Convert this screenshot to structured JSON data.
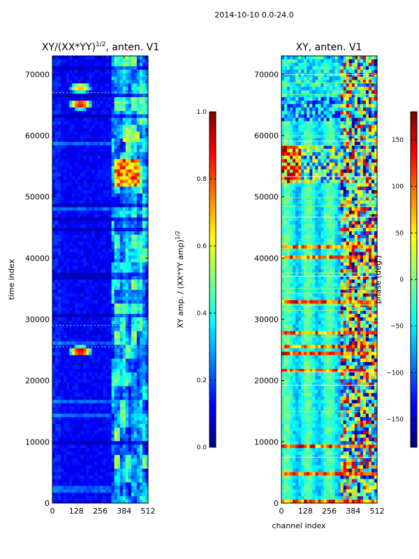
{
  "figure_title": "2014-10-10 0.0-24.0",
  "colors": {
    "jet": [
      "#00007f",
      "#0000ff",
      "#007fff",
      "#00ffff",
      "#7fff7f",
      "#ffff00",
      "#ff7f00",
      "#ff0000",
      "#7f0000"
    ]
  },
  "chart_data": [
    {
      "type": "heatmap",
      "title_base": "XY/(XX*YY)",
      "title_exp": "1/2",
      "title_tail": ", anten. V1",
      "xlabel": "",
      "ylabel": "time index",
      "xlim": [
        0,
        512
      ],
      "ylim": [
        0,
        73000
      ],
      "xticks": [
        0,
        128,
        256,
        384,
        512
      ],
      "yticks": [
        0,
        10000,
        20000,
        30000,
        40000,
        50000,
        60000,
        70000
      ],
      "colorbar": {
        "label_base": "XY amp. / (XX*YY amp)",
        "label_exp": "1/2",
        "range": [
          0.0,
          1.0
        ],
        "ticks": [
          "0.0",
          "0.2",
          "0.4",
          "0.6",
          "0.8",
          "1.0"
        ],
        "tick_values": [
          0.0,
          0.2,
          0.4,
          0.6,
          0.8,
          1.0
        ]
      },
      "features": [
        {
          "channel": 150,
          "time": 24500,
          "value": 0.95
        },
        {
          "channel": 150,
          "time": 64800,
          "value": 0.9
        },
        {
          "channel": 150,
          "time": 67500,
          "value": 0.7
        },
        {
          "channel": 400,
          "time": 53500,
          "value": 0.85
        }
      ]
    },
    {
      "type": "heatmap",
      "title": "XY, anten. V1",
      "xlabel": "channel index",
      "ylabel": "",
      "xlim": [
        0,
        512
      ],
      "ylim": [
        0,
        73000
      ],
      "xticks": [
        0,
        128,
        256,
        384,
        512
      ],
      "yticks": [
        0,
        10000,
        20000,
        30000,
        40000,
        50000,
        60000,
        70000
      ],
      "colorbar": {
        "label": "phase (deg.)",
        "range": [
          -180,
          180
        ],
        "ticks": [
          "−150",
          "−100",
          "−50",
          "0",
          "50",
          "100",
          "150"
        ],
        "tick_values": [
          -150,
          -100,
          -50,
          0,
          50,
          100,
          150
        ]
      }
    }
  ]
}
